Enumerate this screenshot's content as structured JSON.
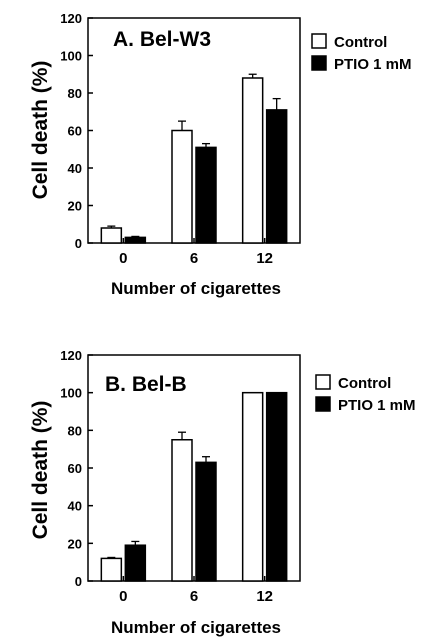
{
  "chart_data": [
    {
      "type": "bar",
      "title": "A. Bel-W3",
      "xlabel": "Number of cigarettes",
      "ylabel": "Cell death (%)",
      "categories": [
        "0",
        "6",
        "12"
      ],
      "ylim": [
        0,
        120
      ],
      "yticks": [
        0,
        20,
        40,
        60,
        80,
        100,
        120
      ],
      "series": [
        {
          "name": "Control",
          "color": "#ffffff",
          "values": [
            8,
            60,
            88
          ],
          "errors": [
            1,
            5,
            2
          ]
        },
        {
          "name": "PTIO 1 mM",
          "color": "#000000",
          "values": [
            3,
            51,
            71
          ],
          "errors": [
            0.5,
            2,
            6
          ]
        }
      ],
      "legend": "right"
    },
    {
      "type": "bar",
      "title": "B. Bel-B",
      "xlabel": "Number of cigarettes",
      "ylabel": "Cell death (%)",
      "categories": [
        "0",
        "6",
        "12"
      ],
      "ylim": [
        0,
        120
      ],
      "yticks": [
        0,
        20,
        40,
        60,
        80,
        100,
        120
      ],
      "series": [
        {
          "name": "Control",
          "color": "#ffffff",
          "values": [
            12,
            75,
            100
          ],
          "errors": [
            0.5,
            4,
            0
          ]
        },
        {
          "name": "PTIO 1 mM",
          "color": "#000000",
          "values": [
            19,
            63,
            100
          ],
          "errors": [
            2,
            3,
            0
          ]
        }
      ],
      "legend": "right"
    }
  ]
}
